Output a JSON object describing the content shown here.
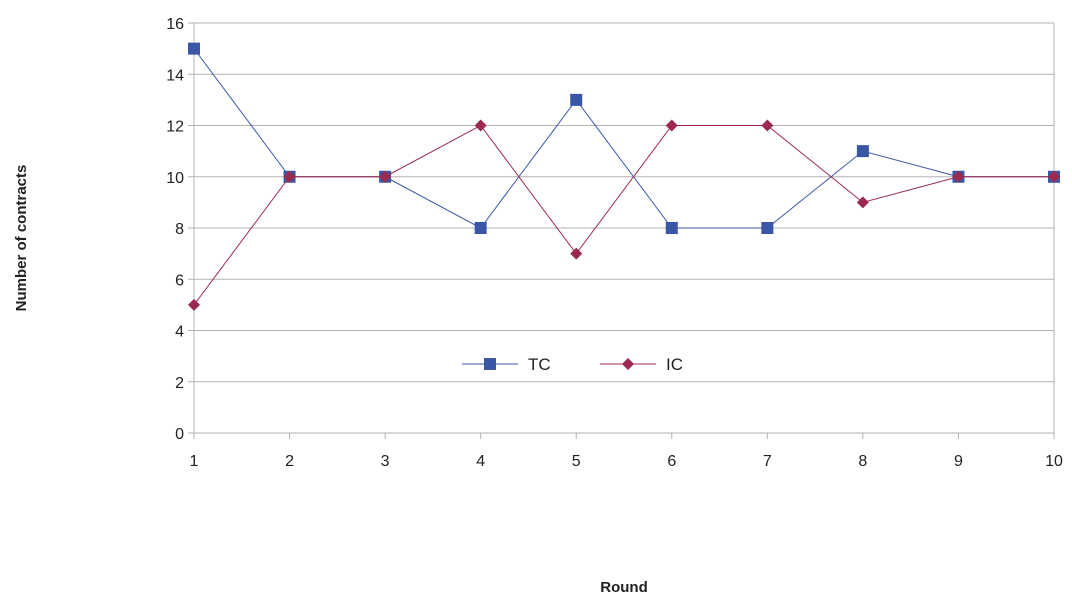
{
  "chart_data": {
    "type": "line",
    "title": "",
    "xlabel": "Round",
    "ylabel": "Number of contracts",
    "x": [
      1,
      2,
      3,
      4,
      5,
      6,
      7,
      8,
      9,
      10
    ],
    "ylim": [
      0,
      16
    ],
    "yticks": [
      0,
      2,
      4,
      6,
      8,
      10,
      12,
      14,
      16
    ],
    "grid": "horizontal",
    "legend_position": "center",
    "series": [
      {
        "name": "TC",
        "values": [
          15,
          10,
          10,
          8,
          13,
          8,
          8,
          11,
          10,
          10
        ],
        "color": "#3a57a7",
        "marker": "square"
      },
      {
        "name": "IC",
        "values": [
          5,
          10,
          10,
          12,
          7,
          12,
          12,
          9,
          10,
          10
        ],
        "color": "#9c2a4f",
        "marker": "diamond"
      }
    ]
  }
}
